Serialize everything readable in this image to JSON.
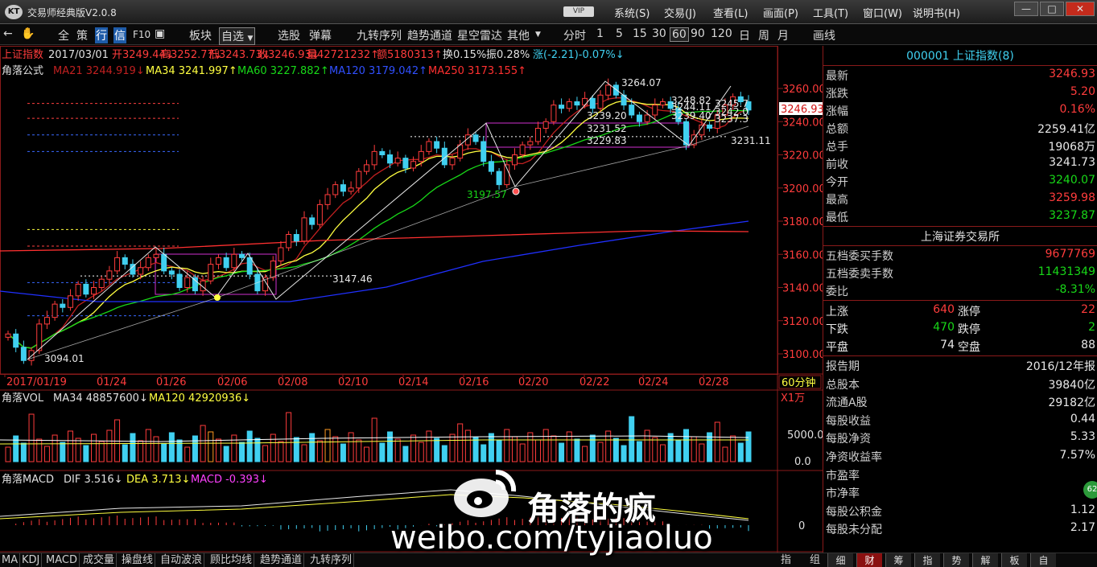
{
  "window": {
    "title": "交易师经典版V2.0.8",
    "vip": "VIP",
    "controls": [
      "—",
      "□",
      "✕"
    ]
  },
  "menu": [
    "系统(S)",
    "交易(J)",
    "查看(L)",
    "画面(P)",
    "工具(T)",
    "窗口(W)",
    "说明书(H)"
  ],
  "toolbar": {
    "items": [
      "全",
      "策",
      "行",
      "信",
      "F10",
      "板块",
      "自选",
      "选股",
      "弹幕",
      "九转序列",
      "趋势通道",
      "星空雷达",
      "其他",
      "分时",
      "1",
      "5",
      "15",
      "30",
      "60",
      "90",
      "120",
      "日",
      "周",
      "月",
      "画线"
    ],
    "selected": "行",
    "selected2": "信",
    "selected_period": "60"
  },
  "infobar": {
    "name": "上证指数",
    "date": "2017/03/01",
    "open": "开3249.44↓",
    "high": "高3252.77↓",
    "low": "低3243.73↓",
    "close": "收3246.93↓",
    "volume": "量42721232↑",
    "amount": "额5180313↑",
    "turnover": "换0.15%",
    "amplitude": "振0.28%",
    "change": "涨(-2.21)-0.07%↓"
  },
  "ma_bar": {
    "name": "角落公式",
    "ma21": "MA21 3244.919↓",
    "ma34": "MA34 3241.997↑",
    "ma60": "MA60 3227.882↑",
    "ma120": "MA120 3179.042↑",
    "ma250": "MA250 3173.155↑"
  },
  "colors": {
    "up": "#ff3c3c",
    "down": "#40d0f0",
    "ma21": "#c02020",
    "ma34": "#ffff40",
    "ma60": "#18d818",
    "ma120": "#2020ff",
    "ma250": "#ff3030"
  },
  "chart_data": {
    "type": "candlestick",
    "ylabels": [
      "3260.00",
      "3240.00",
      "3220.00",
      "3200.00",
      "3180.00",
      "3160.00",
      "3140.00",
      "3120.00",
      "3100.00"
    ],
    "xlabels": [
      "2017/01/19",
      "01/24",
      "01/26",
      "02/06",
      "02/08",
      "02/10",
      "02/14",
      "02/16",
      "02/20",
      "02/22",
      "02/24",
      "02/28"
    ],
    "period": "60分钟",
    "current_price": "3246.93",
    "annotations": [
      "3264.07",
      "3248.82",
      "3244.11",
      "3239.40",
      "3239.20",
      "3231.52",
      "3229.83",
      "3231.11",
      "3197.57",
      "3147.46",
      "3094.01",
      "3245.7",
      "3242.0",
      "3237.3"
    ],
    "closes": [
      3112,
      3104,
      3096,
      3102,
      3118,
      3122,
      3130,
      3128,
      3135,
      3142,
      3136,
      3140,
      3145,
      3150,
      3158,
      3154,
      3148,
      3152,
      3158,
      3160,
      3150,
      3148,
      3140,
      3146,
      3138,
      3144,
      3154,
      3158,
      3152,
      3160,
      3158,
      3148,
      3138,
      3146,
      3156,
      3164,
      3172,
      3168,
      3182,
      3178,
      3190,
      3196,
      3202,
      3198,
      3200,
      3210,
      3214,
      3222,
      3220,
      3215,
      3218,
      3212,
      3216,
      3222,
      3228,
      3224,
      3214,
      3218,
      3226,
      3232,
      3228,
      3216,
      3210,
      3202,
      3214,
      3220,
      3226,
      3228,
      3236,
      3240,
      3250,
      3248,
      3252,
      3250,
      3254,
      3248,
      3256,
      3262,
      3256,
      3250,
      3244,
      3240,
      3244,
      3250,
      3252,
      3248,
      3240,
      3226,
      3232,
      3238,
      3236,
      3244,
      3250,
      3255,
      3252,
      3247
    ],
    "volume": {
      "label": "角落VOL",
      "ma34": "MA34 48857600↓",
      "ma120": "MA120 42920936↓",
      "unit": "X1万",
      "ticks": [
        "5000.0",
        "0.0"
      ]
    },
    "macd": {
      "label": "角落MACD",
      "dif": "DIF 3.516↓",
      "dea": "DEA 3.713↓",
      "macd": "MACD -0.393↓",
      "zero": "0"
    }
  },
  "right_panel": {
    "title": "000001 上证指数(8)",
    "quote": [
      {
        "label": "最新",
        "value": "3246.93",
        "color": "red"
      },
      {
        "label": "涨跌",
        "value": "5.20",
        "color": "red"
      },
      {
        "label": "涨幅",
        "value": "0.16%",
        "color": "red"
      },
      {
        "label": "总额",
        "value": "2259.41亿",
        "color": "white"
      },
      {
        "label": "总手",
        "value": "19068万",
        "color": "white"
      },
      {
        "label": "前收",
        "value": "3241.73",
        "color": "white"
      },
      {
        "label": "今开",
        "value": "3240.07",
        "color": "green"
      },
      {
        "label": "最高",
        "value": "3259.98",
        "color": "red"
      },
      {
        "label": "最低",
        "value": "3237.87",
        "color": "green"
      }
    ],
    "exchange": "上海证券交易所",
    "orders": [
      {
        "label": "五档委买手数",
        "value": "9677769",
        "color": "red"
      },
      {
        "label": "五档委卖手数",
        "value": "11431349",
        "color": "green"
      },
      {
        "label": "委比",
        "value": "-8.31%",
        "color": "green"
      }
    ],
    "breadth": [
      {
        "l1": "上涨",
        "v1": "640",
        "c1": "red",
        "l2": "涨停",
        "v2": "22",
        "c2": "red"
      },
      {
        "l1": "下跌",
        "v1": "470",
        "c1": "green",
        "l2": "跌停",
        "v2": "2",
        "c2": "green"
      },
      {
        "l1": "平盘",
        "v1": "74",
        "c1": "white",
        "l2": "空盘",
        "v2": "88",
        "c2": "white"
      }
    ],
    "finance": [
      {
        "label": "报告期",
        "value": "2016/12年报"
      },
      {
        "label": "总股本",
        "value": "39840亿"
      },
      {
        "label": "流通A股",
        "value": "29182亿"
      },
      {
        "label": "每股收益",
        "value": "0.44"
      },
      {
        "label": "每股净资",
        "value": "5.33"
      },
      {
        "label": "净资收益率",
        "value": "7.57%"
      },
      {
        "label": "市盈率",
        "value": ""
      },
      {
        "label": "市净率",
        "value": ""
      },
      {
        "label": "每股公积金",
        "value": "1.12"
      },
      {
        "label": "每股未分配",
        "value": "2.17"
      }
    ],
    "badge": "62"
  },
  "bottom_tabs": [
    "MA",
    "KDJ",
    "MACD",
    "成交量",
    "操盘线",
    "自动波浪",
    "顾比均线",
    "趋势通道",
    "九转序列"
  ],
  "bottom_right": [
    "指",
    "组"
  ],
  "right_tabs": [
    "细",
    "财",
    "筹",
    "指",
    "势",
    "解",
    "板",
    "自"
  ],
  "right_tab_selected": "财",
  "watermark": {
    "name": "角落的疯",
    "url": "weibo.com/tyjiaoluo"
  }
}
